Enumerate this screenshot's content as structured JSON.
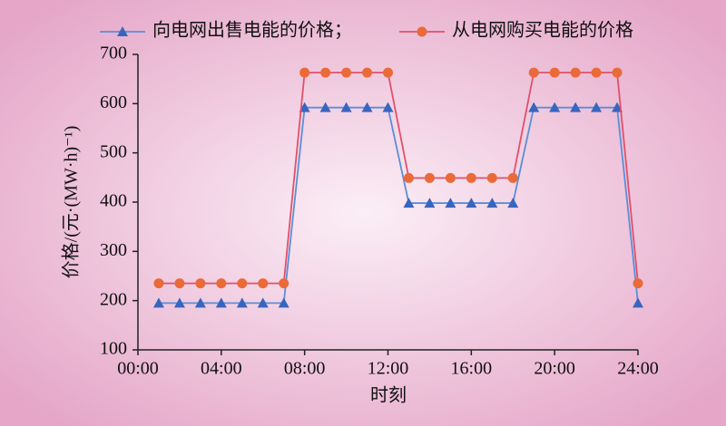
{
  "chart_data": {
    "type": "line",
    "x_label": "时刻",
    "y_label": "价格/(元·(MW·h)⁻¹)",
    "x": [
      1,
      2,
      3,
      4,
      5,
      6,
      7,
      8,
      9,
      10,
      11,
      12,
      13,
      14,
      15,
      16,
      17,
      18,
      19,
      20,
      21,
      22,
      23,
      24
    ],
    "series": [
      {
        "name": "向电网出售电能的价格；",
        "color": "#5b8fd6",
        "marker_color": "#3a65bd",
        "marker": "triangle",
        "values": [
          195,
          195,
          195,
          195,
          195,
          195,
          195,
          592,
          592,
          592,
          592,
          592,
          398,
          398,
          398,
          398,
          398,
          398,
          592,
          592,
          592,
          592,
          592,
          195
        ]
      },
      {
        "name": "从电网购买电能的价格",
        "color": "#e2506a",
        "marker_color": "#ea6a38",
        "marker": "circle",
        "values": [
          235,
          235,
          235,
          235,
          235,
          235,
          235,
          663,
          663,
          663,
          663,
          663,
          449,
          449,
          449,
          449,
          449,
          449,
          663,
          663,
          663,
          663,
          663,
          235
        ]
      }
    ],
    "xlim": [
      0,
      24
    ],
    "xticks": [
      {
        "value": 0,
        "label": "00:00"
      },
      {
        "value": 4,
        "label": "04:00"
      },
      {
        "value": 8,
        "label": "08:00"
      },
      {
        "value": 12,
        "label": "12:00"
      },
      {
        "value": 16,
        "label": "16:00"
      },
      {
        "value": 20,
        "label": "20:00"
      },
      {
        "value": 24,
        "label": "24:00"
      }
    ],
    "ylim": [
      100,
      700
    ],
    "yticks": [
      100,
      200,
      300,
      400,
      500,
      600,
      700
    ],
    "grid": false
  }
}
